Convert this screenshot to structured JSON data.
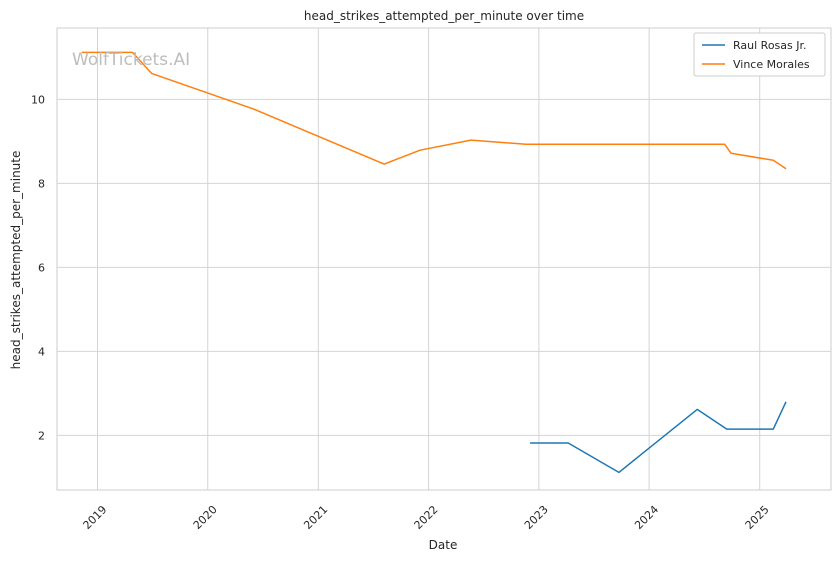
{
  "watermark": "WolfTickets.AI",
  "chart_data": {
    "type": "line",
    "title": "head_strikes_attempted_per_minute over time",
    "xlabel": "Date",
    "ylabel": "head_strikes_attempted_per_minute",
    "xlim": [
      "2018-08-20",
      "2025-08-25"
    ],
    "ylim": [
      0.7,
      11.7
    ],
    "x_ticks": [
      "2019",
      "2020",
      "2021",
      "2022",
      "2023",
      "2024",
      "2025"
    ],
    "y_ticks": [
      2,
      4,
      6,
      8,
      10
    ],
    "grid": true,
    "legend_position": "top-right",
    "series": [
      {
        "name": "Raul Rosas Jr.",
        "color": "#1f77b4",
        "points": [
          [
            "2022-12-03",
            1.82
          ],
          [
            "2023-04-08",
            1.82
          ],
          [
            "2023-09-23",
            1.12
          ],
          [
            "2024-06-08",
            2.62
          ],
          [
            "2024-09-14",
            2.15
          ],
          [
            "2025-02-15",
            2.15
          ],
          [
            "2025-03-29",
            2.8
          ]
        ]
      },
      {
        "name": "Vince Morales",
        "color": "#ff7f0e",
        "points": [
          [
            "2018-11-10",
            11.12
          ],
          [
            "2019-04-27",
            11.12
          ],
          [
            "2019-06-29",
            10.62
          ],
          [
            "2020-06-01",
            9.77
          ],
          [
            "2021-08-07",
            8.46
          ],
          [
            "2021-12-04",
            8.79
          ],
          [
            "2022-05-21",
            9.03
          ],
          [
            "2022-11-19",
            8.93
          ],
          [
            "2024-09-07",
            8.93
          ],
          [
            "2024-09-28",
            8.72
          ],
          [
            "2025-02-15",
            8.55
          ],
          [
            "2025-03-29",
            8.35
          ]
        ]
      }
    ]
  }
}
